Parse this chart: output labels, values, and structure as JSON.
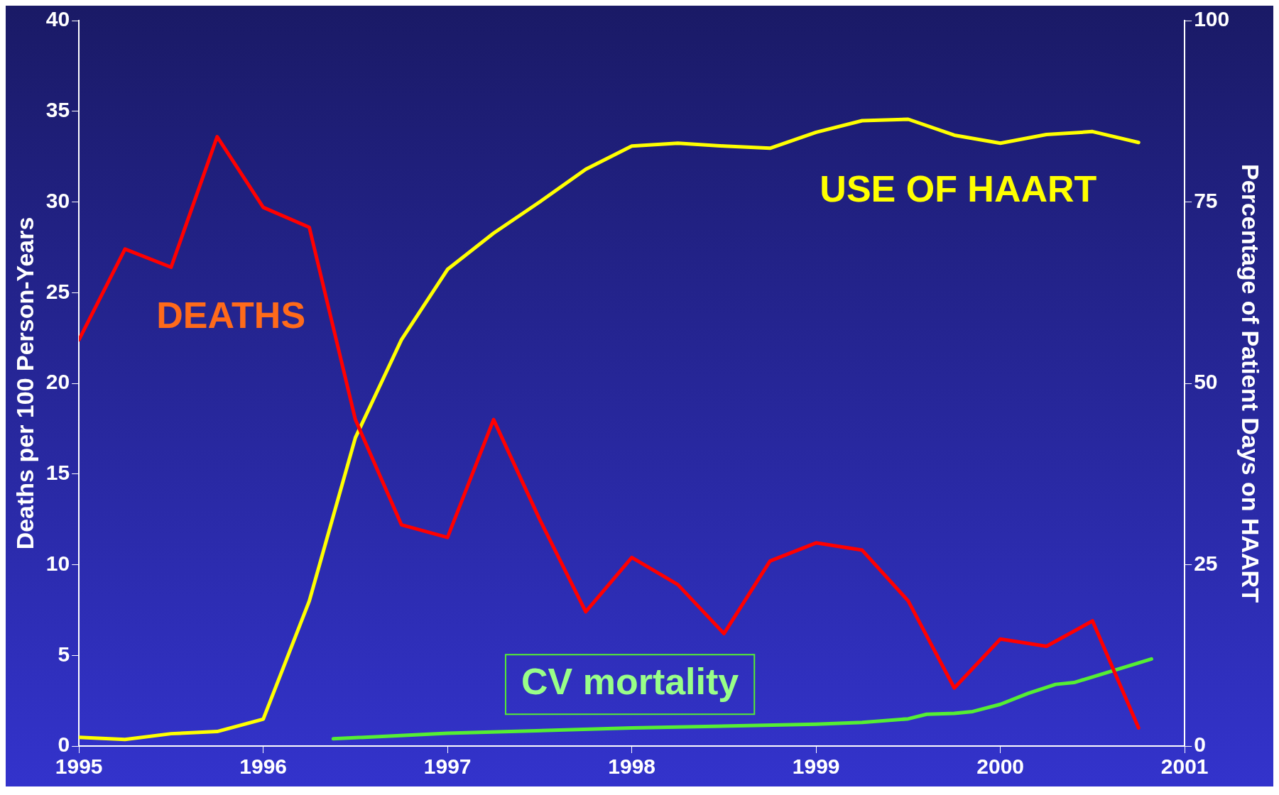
{
  "chart_data": {
    "type": "line",
    "ylabel": "Deaths per 100 Person-Years",
    "y2label": "Percentage of Patient Days on HAART",
    "xlim": [
      1995,
      2001
    ],
    "xticks": [
      1995,
      1996,
      1997,
      1998,
      1999,
      2000,
      2001
    ],
    "ylim": [
      0,
      40
    ],
    "yticks": [
      0,
      5,
      10,
      15,
      20,
      25,
      30,
      35,
      40
    ],
    "y2lim": [
      0,
      100
    ],
    "y2ticks": [
      0,
      25,
      50,
      75,
      100
    ],
    "grid": false,
    "legend": false,
    "marker": "none",
    "line_style": "solid",
    "series": [
      {
        "name": "DEATHS",
        "color": "#ff0000",
        "x": [
          1995,
          1995.25,
          1995.5,
          1995.75,
          1996,
          1996.25,
          1996.5,
          1996.75,
          1997,
          1997.25,
          1997.5,
          1997.75,
          1998,
          1998.25,
          1998.5,
          1998.75,
          1999,
          1999.25,
          1999.5,
          1999.75,
          2000,
          2000.25,
          2000.5,
          2000.75
        ],
        "values": [
          22.4,
          27.4,
          26.4,
          33.6,
          29.7,
          28.6,
          18,
          12.2,
          11.5,
          18,
          12.5,
          7.4,
          10.4,
          8.9,
          6.2,
          10.2,
          11.2,
          10.8,
          8,
          3.2,
          5.9,
          5.5,
          6.9,
          1
        ]
      },
      {
        "name": "USE OF HAART",
        "color": "#ffff00",
        "axis": "y2",
        "x": [
          1995,
          1995.25,
          1995.5,
          1995.75,
          1996,
          1996.25,
          1996.5,
          1996.75,
          1997,
          1997.25,
          1997.5,
          1997.75,
          1998,
          1998.25,
          1998.5,
          1998.75,
          1999,
          1999.25,
          1999.5,
          1999.75,
          2000,
          2000.25,
          2000.5,
          2000.75
        ],
        "values": [
          1.2,
          0.9,
          1.7,
          2,
          3.7,
          20,
          42.5,
          56,
          65.7,
          70.7,
          75,
          79.5,
          82.7,
          83.1,
          82.7,
          82.4,
          84.6,
          86.2,
          86.4,
          84.2,
          83.1,
          84.3,
          84.7,
          83.2
        ]
      },
      {
        "name": "CV mortality",
        "color": "#55ee33",
        "x": [
          1996.38,
          1997,
          1998,
          1999,
          1999.25,
          1999.5,
          1999.6,
          1999.75,
          1999.85,
          2000,
          2000.15,
          2000.3,
          2000.4,
          2000.82
        ],
        "values": [
          0.4,
          0.7,
          1,
          1.2,
          1.3,
          1.5,
          1.75,
          1.8,
          1.9,
          2.3,
          2.9,
          3.4,
          3.5,
          4.8
        ]
      }
    ]
  }
}
